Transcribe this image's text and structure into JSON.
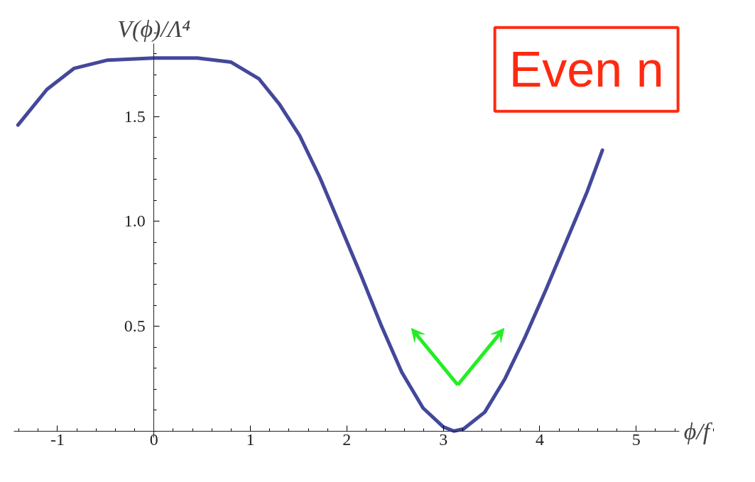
{
  "chart_data": {
    "type": "line",
    "xlabel": "ϕ/f",
    "ylabel": "V(ϕ)/Λ⁴",
    "annotations": [
      "Even n"
    ],
    "x": [
      -1.41,
      -1.11,
      -0.83,
      -0.48,
      0,
      0.45,
      0.8,
      1.09,
      1.3,
      1.51,
      1.72,
      1.94,
      2.15,
      2.36,
      2.57,
      2.79,
      3.0,
      3.11,
      3.21,
      3.43,
      3.64,
      3.85,
      4.06,
      4.28,
      4.49,
      4.65
    ],
    "series": [
      {
        "color": "#43489a",
        "values": [
          1.46,
          1.63,
          1.73,
          1.77,
          1.78,
          1.78,
          1.76,
          1.68,
          1.56,
          1.41,
          1.21,
          0.97,
          0.74,
          0.5,
          0.28,
          0.11,
          0.02,
          0,
          0.01,
          0.09,
          0.25,
          0.45,
          0.67,
          0.91,
          1.14,
          1.34
        ]
      }
    ],
    "xlim": [
      -1.45,
      5.45
    ],
    "ylim": [
      -0.03,
      1.85
    ],
    "xticks": [
      -1,
      0,
      1,
      2,
      3,
      4,
      5
    ],
    "yticks": [
      {
        "value": 0.5,
        "label": "0.5"
      },
      {
        "value": 1.0,
        "label": "1.0"
      },
      {
        "value": 1.5,
        "label": "1.5"
      }
    ],
    "grid": false,
    "marker": "none",
    "line_style": "solid"
  }
}
